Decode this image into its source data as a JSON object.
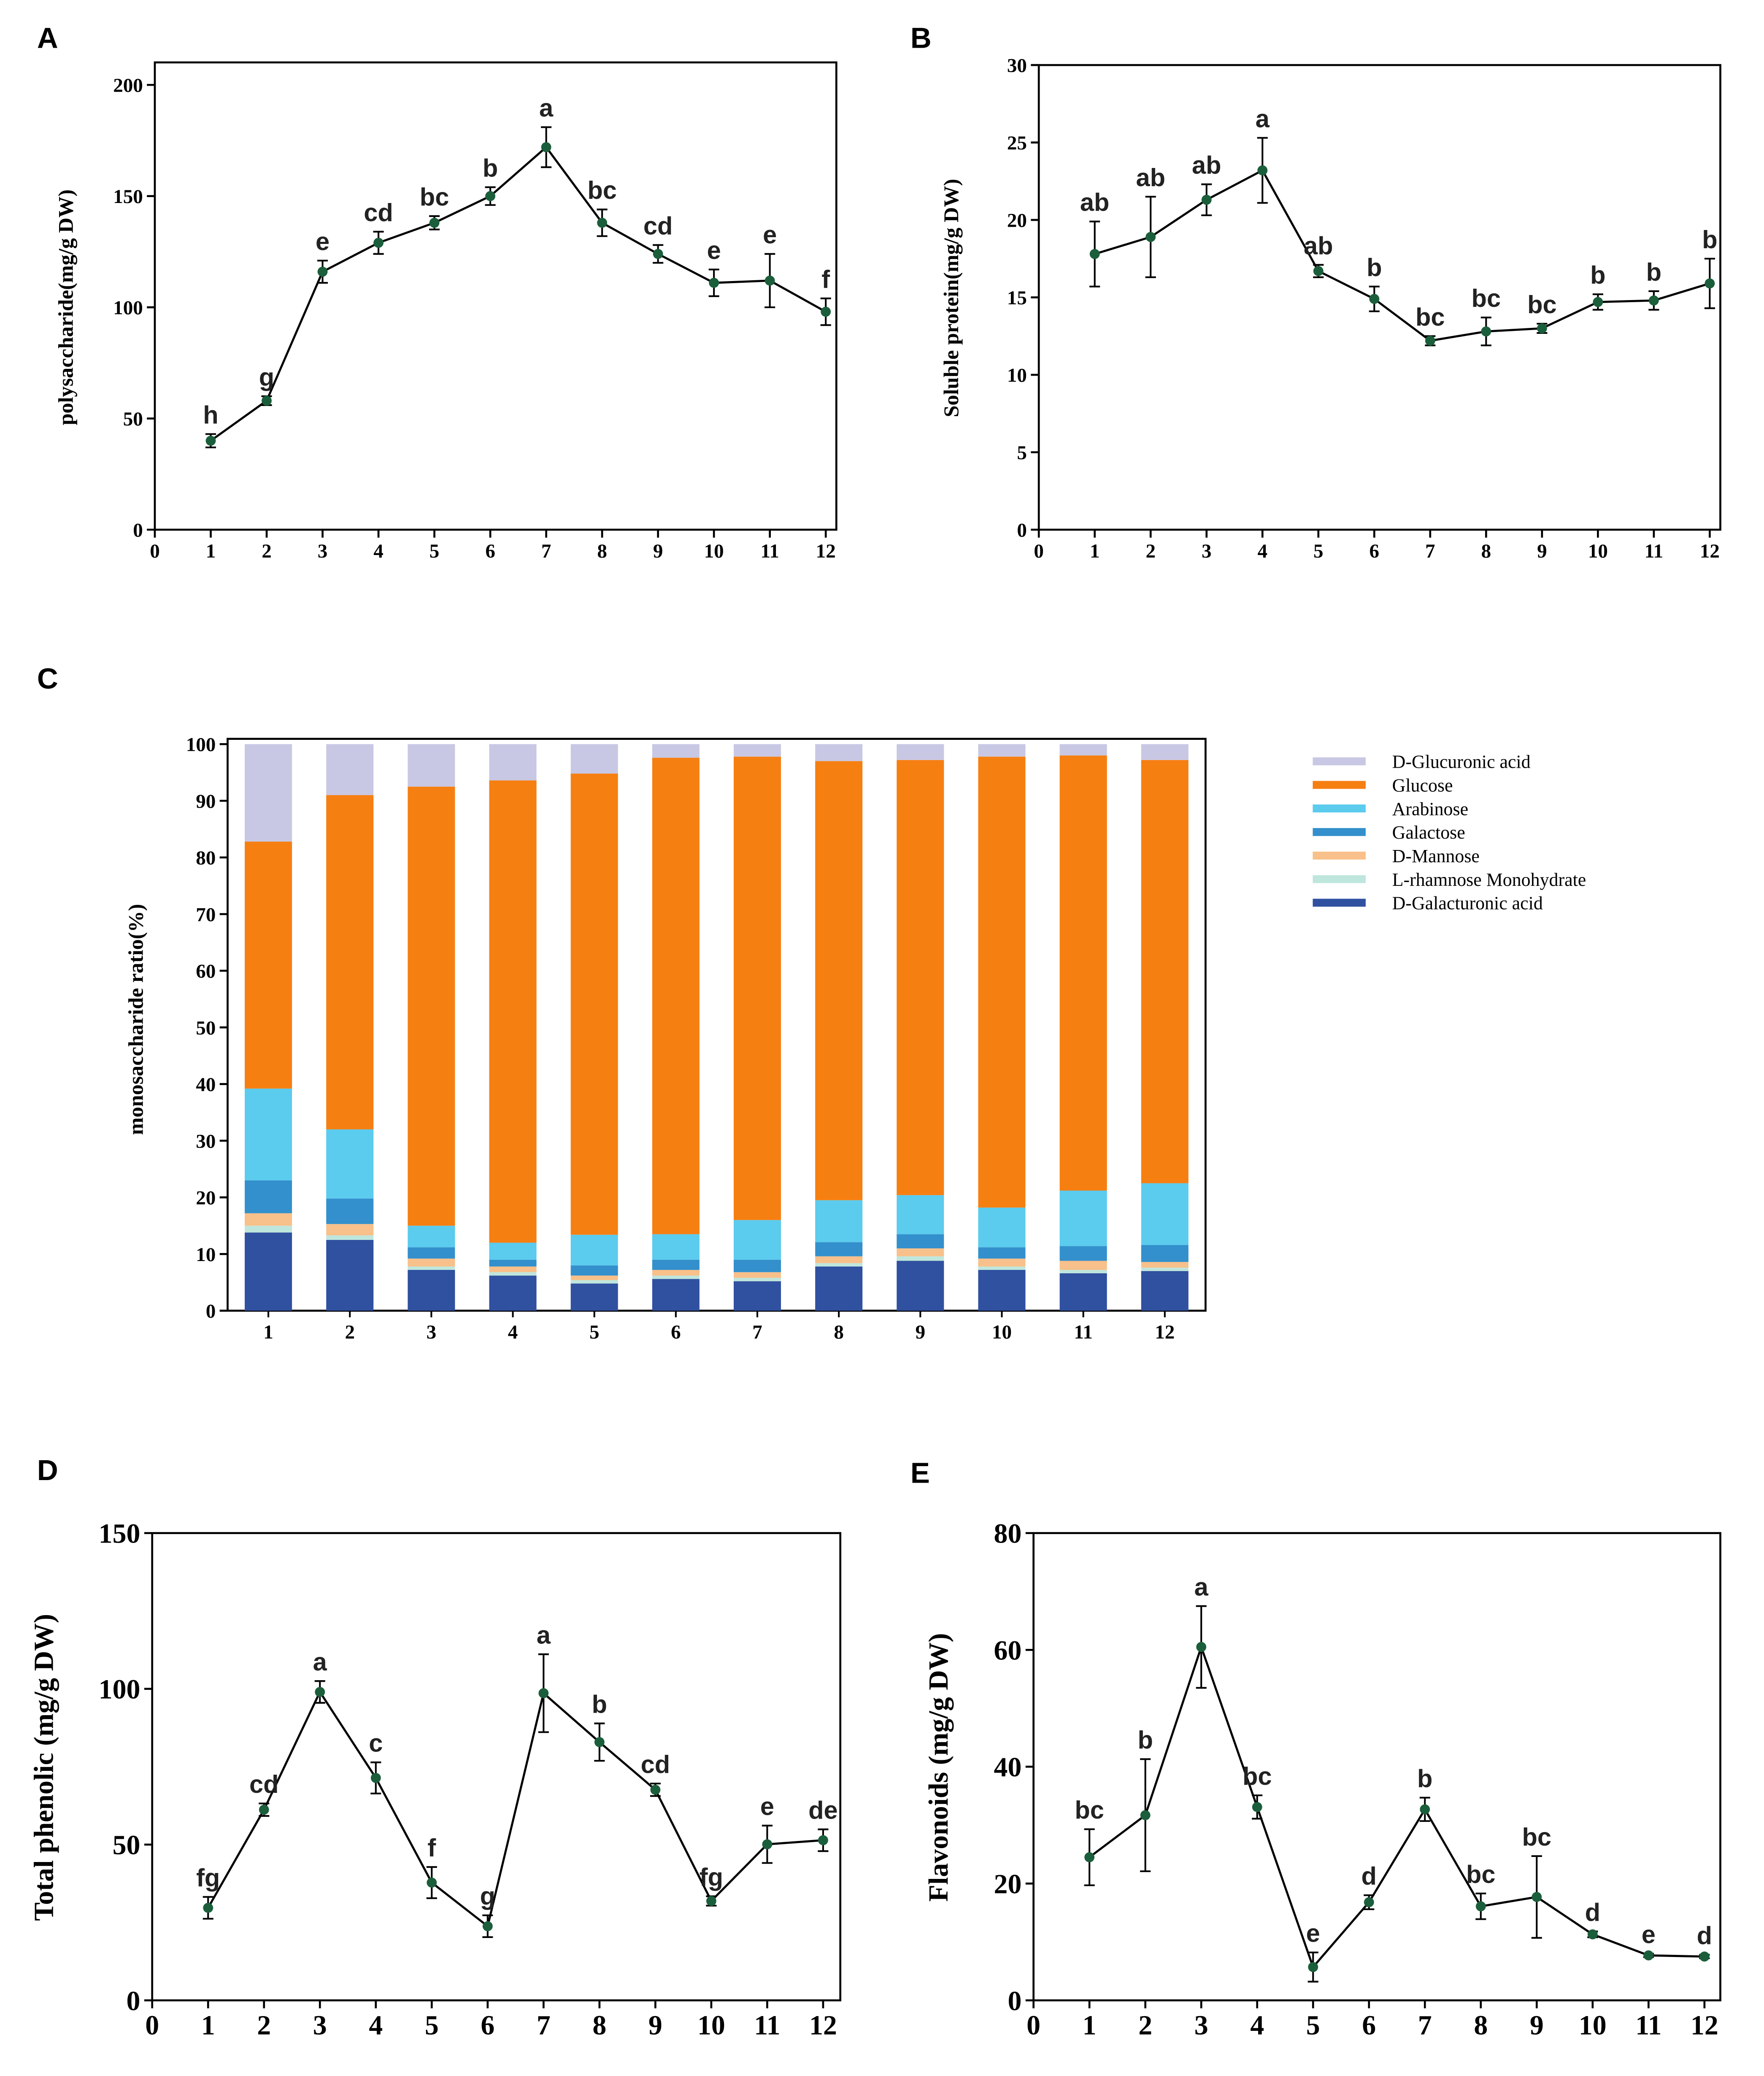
{
  "chart_data": [
    {
      "type": "line",
      "panel": "A",
      "y_label": "polysaccharide(mg/g DW)",
      "color": "#1b5e3b",
      "x": [
        1,
        2,
        3,
        4,
        5,
        6,
        7,
        8,
        9,
        10,
        11,
        12
      ],
      "values": [
        40,
        58,
        116,
        129,
        138,
        150,
        172,
        138,
        124,
        111,
        112,
        98
      ],
      "errors": [
        3,
        2,
        5,
        5,
        3,
        4,
        9,
        6,
        4,
        6,
        12,
        6
      ],
      "annotations": [
        "h",
        "g",
        "e",
        "cd",
        "bc",
        "b",
        "a",
        "bc",
        "cd",
        "e",
        "e",
        "f"
      ],
      "xlim": [
        0,
        12
      ],
      "xticks": [
        0,
        1,
        2,
        3,
        4,
        5,
        6,
        7,
        8,
        9,
        10,
        11,
        12
      ],
      "ylim": [
        0,
        200
      ],
      "yticks": [
        0,
        50,
        100,
        150,
        200
      ]
    },
    {
      "type": "line",
      "panel": "B",
      "y_label": "Soluble protein(mg/g DW)",
      "color": "#1b5e3b",
      "x": [
        1,
        2,
        3,
        4,
        5,
        6,
        7,
        8,
        9,
        10,
        11,
        12
      ],
      "values": [
        17.8,
        18.9,
        21.3,
        23.2,
        16.7,
        14.9,
        12.2,
        12.8,
        13.0,
        14.7,
        14.8,
        15.9
      ],
      "errors": [
        2.1,
        2.6,
        1.0,
        2.1,
        0.4,
        0.8,
        0.3,
        0.9,
        0.3,
        0.5,
        0.6,
        1.6
      ],
      "annotations": [
        "ab",
        "ab",
        "ab",
        "a",
        "ab",
        "b",
        "bc",
        "bc",
        "bc",
        "b",
        "b",
        "b"
      ],
      "xlim": [
        0,
        12
      ],
      "xticks": [
        0,
        1,
        2,
        3,
        4,
        5,
        6,
        7,
        8,
        9,
        10,
        11,
        12
      ],
      "ylim": [
        0,
        30
      ],
      "yticks": [
        0,
        5,
        10,
        15,
        20,
        25,
        30
      ]
    },
    {
      "type": "bar",
      "stacked": true,
      "panel": "C",
      "y_label": "monosaccharide ratio(%)",
      "categories": [
        "1",
        "2",
        "3",
        "4",
        "5",
        "6",
        "7",
        "8",
        "9",
        "10",
        "11",
        "12"
      ],
      "series": [
        {
          "name": "D-Glucuronic acid",
          "color": "#c8c8e4",
          "values": [
            17.2,
            9,
            7.5,
            6.4,
            5.2,
            2.4,
            2.2,
            3,
            2.8,
            2.2,
            2,
            2.8
          ]
        },
        {
          "name": "Glucose",
          "color": "#f67f12",
          "values": [
            43.6,
            59,
            77.5,
            81.6,
            81.4,
            84.1,
            81.8,
            77.5,
            76.8,
            79.6,
            76.8,
            74.7
          ]
        },
        {
          "name": "Arabinose",
          "color": "#5bcbee",
          "values": [
            16.2,
            12.2,
            3.8,
            3,
            5.4,
            4.5,
            7,
            7.4,
            6.9,
            7,
            9.8,
            10.9
          ]
        },
        {
          "name": "Galactose",
          "color": "#3390cc",
          "values": [
            5.8,
            4.5,
            2,
            1.2,
            1.8,
            1.8,
            2.2,
            2.5,
            2.5,
            2,
            2.6,
            3
          ]
        },
        {
          "name": "D-Mannose",
          "color": "#f8c08a",
          "values": [
            2.2,
            2,
            1.4,
            1,
            0.8,
            1,
            1,
            1.2,
            1.4,
            1.4,
            1.6,
            1
          ]
        },
        {
          "name": "L-rhamnose Monohydrate",
          "color": "#bfe6dc",
          "values": [
            1.2,
            0.8,
            0.6,
            0.6,
            0.6,
            0.6,
            0.6,
            0.6,
            0.8,
            0.6,
            0.6,
            0.6
          ]
        },
        {
          "name": "D-Galacturonic acid",
          "color": "#3050a0",
          "values": [
            13.8,
            12.5,
            7.2,
            6.2,
            4.8,
            5.6,
            5.2,
            7.8,
            8.8,
            7.2,
            6.6,
            7
          ]
        }
      ],
      "ylim": [
        0,
        100
      ],
      "yticks": [
        0,
        10,
        20,
        30,
        40,
        50,
        60,
        70,
        80,
        90,
        100
      ]
    },
    {
      "type": "line",
      "panel": "D",
      "y_label": "Total phenolic (mg/g DW)",
      "color": "#1b5e3b",
      "x": [
        1,
        2,
        3,
        4,
        5,
        6,
        7,
        8,
        9,
        10,
        11,
        12
      ],
      "values": [
        29.7,
        61.2,
        99,
        71.4,
        37.8,
        23.8,
        98.6,
        82.9,
        67.6,
        31.9,
        50.1,
        51.4
      ],
      "errors": [
        3.5,
        2,
        3.5,
        5,
        5,
        3.5,
        12.5,
        6,
        2,
        1.5,
        6,
        3.5
      ],
      "annotations": [
        "fg",
        "cd",
        "a",
        "c",
        "f",
        "g",
        "a",
        "b",
        "cd",
        "fg",
        "e",
        "de"
      ],
      "xlim": [
        0,
        12
      ],
      "xticks": [
        0,
        1,
        2,
        3,
        4,
        5,
        6,
        7,
        8,
        9,
        10,
        11,
        12
      ],
      "ylim": [
        0,
        150
      ],
      "yticks": [
        0,
        50,
        100,
        150
      ]
    },
    {
      "type": "line",
      "panel": "E",
      "y_label": "Flavonoids (mg/g DW)",
      "color": "#1b5e3b",
      "x": [
        1,
        2,
        3,
        4,
        5,
        6,
        7,
        8,
        9,
        10,
        11,
        12
      ],
      "values": [
        24.5,
        31.7,
        60.5,
        33.1,
        5.7,
        16.8,
        32.7,
        16.1,
        17.7,
        11.3,
        7.7,
        7.5
      ],
      "errors": [
        4.8,
        9.6,
        7,
        2,
        2.5,
        1.2,
        2,
        2.2,
        7,
        0.5,
        0.3,
        0.3
      ],
      "annotations": [
        "bc",
        "b",
        "a",
        "bc",
        "e",
        "d",
        "b",
        "bc",
        "bc",
        "d",
        "e",
        "d"
      ],
      "xlim": [
        0,
        12
      ],
      "xticks": [
        0,
        1,
        2,
        3,
        4,
        5,
        6,
        7,
        8,
        9,
        10,
        11,
        12
      ],
      "ylim": [
        0,
        80
      ],
      "yticks": [
        0,
        20,
        40,
        60,
        80
      ]
    }
  ]
}
